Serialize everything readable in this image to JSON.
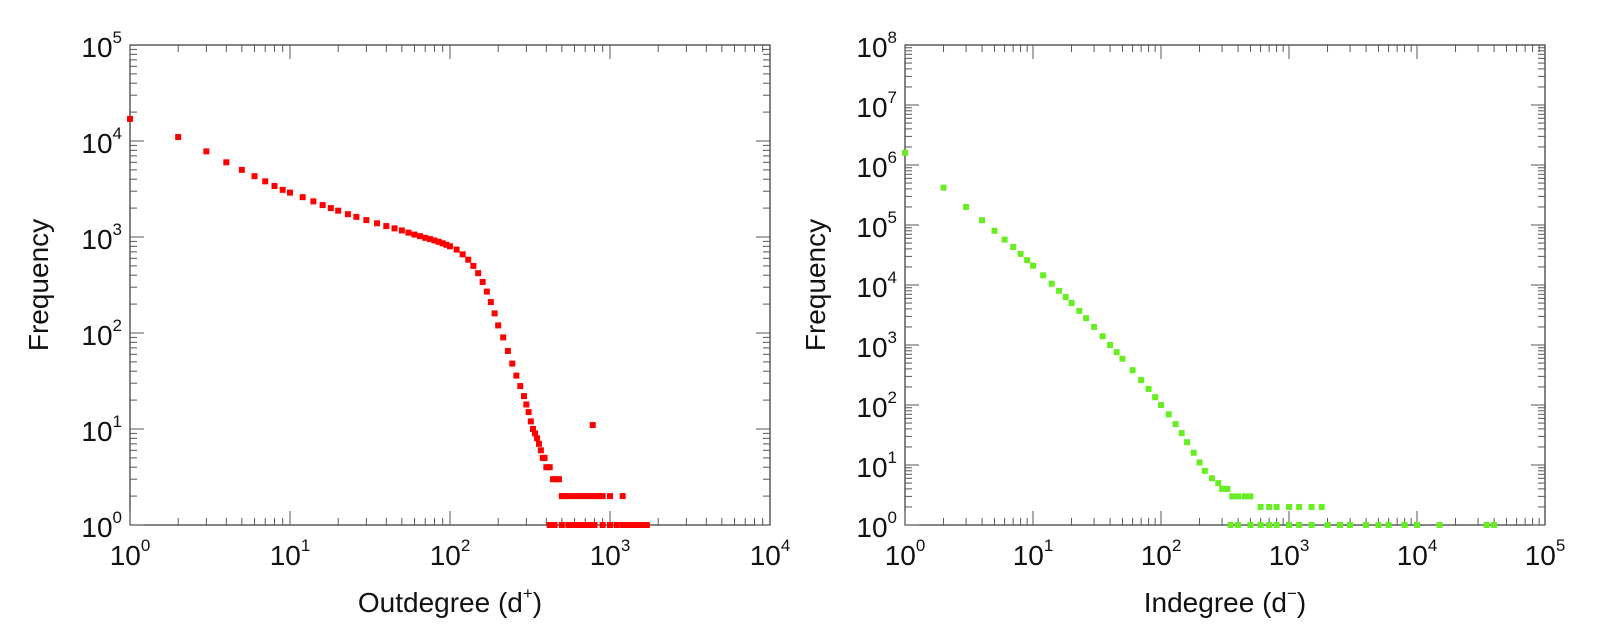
{
  "chart_data": [
    {
      "type": "scatter",
      "xlabel": "Outdegree (d",
      "xlabel_sup": "+",
      "xlabel_end": ")",
      "ylabel": "Frequency",
      "xscale": "log",
      "yscale": "log",
      "xlim": [
        1,
        10000
      ],
      "ylim": [
        1,
        100000
      ],
      "x_ticks": [
        "10",
        "10",
        "10",
        "10",
        "10"
      ],
      "x_ticks_exp": [
        "0",
        "1",
        "2",
        "3",
        "4"
      ],
      "y_ticks": [
        "10",
        "10",
        "10",
        "10",
        "10",
        "10"
      ],
      "y_ticks_exp": [
        "0",
        "1",
        "2",
        "3",
        "4",
        "5"
      ],
      "color": "#ff0000",
      "grid": false,
      "series": [
        {
          "values": [
            [
              1,
              17000
            ],
            [
              2,
              11000
            ],
            [
              3,
              7800
            ],
            [
              4,
              6000
            ],
            [
              5,
              5000
            ],
            [
              6,
              4300
            ],
            [
              7,
              3800
            ],
            [
              8,
              3400
            ],
            [
              9,
              3100
            ],
            [
              10,
              2900
            ],
            [
              12,
              2600
            ],
            [
              14,
              2350
            ],
            [
              16,
              2150
            ],
            [
              18,
              2000
            ],
            [
              20,
              1880
            ],
            [
              23,
              1730
            ],
            [
              26,
              1620
            ],
            [
              30,
              1500
            ],
            [
              35,
              1390
            ],
            [
              40,
              1300
            ],
            [
              45,
              1230
            ],
            [
              50,
              1170
            ],
            [
              55,
              1110
            ],
            [
              60,
              1060
            ],
            [
              65,
              1020
            ],
            [
              70,
              980
            ],
            [
              75,
              950
            ],
            [
              80,
              920
            ],
            [
              85,
              890
            ],
            [
              90,
              860
            ],
            [
              95,
              830
            ],
            [
              100,
              800
            ],
            [
              110,
              740
            ],
            [
              120,
              660
            ],
            [
              130,
              580
            ],
            [
              140,
              500
            ],
            [
              150,
              420
            ],
            [
              160,
              340
            ],
            [
              170,
              270
            ],
            [
              180,
              210
            ],
            [
              190,
              160
            ],
            [
              200,
              120
            ],
            [
              215,
              90
            ],
            [
              230,
              65
            ],
            [
              245,
              48
            ],
            [
              260,
              36
            ],
            [
              275,
              28
            ],
            [
              290,
              22
            ],
            [
              300,
              18
            ],
            [
              310,
              15
            ],
            [
              320,
              12
            ],
            [
              330,
              10
            ],
            [
              340,
              9
            ],
            [
              350,
              8
            ],
            [
              360,
              7
            ],
            [
              370,
              6
            ],
            [
              380,
              5
            ],
            [
              390,
              5
            ],
            [
              400,
              4
            ],
            [
              420,
              4
            ],
            [
              440,
              3
            ],
            [
              460,
              3
            ],
            [
              480,
              3
            ],
            [
              500,
              2
            ],
            [
              520,
              2
            ],
            [
              550,
              2
            ],
            [
              600,
              2
            ],
            [
              650,
              2
            ],
            [
              700,
              2
            ],
            [
              750,
              2
            ],
            [
              780,
              11
            ],
            [
              800,
              2
            ],
            [
              850,
              2
            ],
            [
              900,
              2
            ],
            [
              1000,
              2
            ],
            [
              1200,
              2
            ],
            [
              420,
              1
            ],
            [
              450,
              1
            ],
            [
              500,
              1
            ],
            [
              550,
              1
            ],
            [
              600,
              1
            ],
            [
              650,
              1
            ],
            [
              700,
              1
            ],
            [
              750,
              1
            ],
            [
              800,
              1
            ],
            [
              900,
              1
            ],
            [
              1000,
              1
            ],
            [
              1100,
              1
            ],
            [
              1200,
              1
            ],
            [
              1300,
              1
            ],
            [
              1400,
              1
            ],
            [
              1500,
              1
            ],
            [
              1600,
              1
            ],
            [
              1700,
              1
            ]
          ]
        }
      ]
    },
    {
      "type": "scatter",
      "xlabel": "Indegree (d",
      "xlabel_sup": "−",
      "xlabel_end": ")",
      "ylabel": "Frequency",
      "xscale": "log",
      "yscale": "log",
      "xlim": [
        1,
        100000
      ],
      "ylim": [
        1,
        100000000
      ],
      "x_ticks": [
        "10",
        "10",
        "10",
        "10",
        "10",
        "10"
      ],
      "x_ticks_exp": [
        "0",
        "1",
        "2",
        "3",
        "4",
        "5"
      ],
      "y_ticks": [
        "10",
        "10",
        "10",
        "10",
        "10",
        "10",
        "10",
        "10",
        "10"
      ],
      "y_ticks_exp": [
        "0",
        "1",
        "2",
        "3",
        "4",
        "5",
        "6",
        "7",
        "8"
      ],
      "color": "#66ee22",
      "grid": false,
      "series": [
        {
          "values": [
            [
              1,
              1600000
            ],
            [
              2,
              420000
            ],
            [
              3,
              200000
            ],
            [
              4,
              120000
            ],
            [
              5,
              80000
            ],
            [
              6,
              57000
            ],
            [
              7,
              43000
            ],
            [
              8,
              33000
            ],
            [
              9,
              26000
            ],
            [
              10,
              21000
            ],
            [
              12,
              14500
            ],
            [
              14,
              10500
            ],
            [
              16,
              8000
            ],
            [
              18,
              6300
            ],
            [
              20,
              5000
            ],
            [
              23,
              3700
            ],
            [
              26,
              2800
            ],
            [
              30,
              2000
            ],
            [
              35,
              1400
            ],
            [
              40,
              1000
            ],
            [
              45,
              760
            ],
            [
              50,
              590
            ],
            [
              60,
              380
            ],
            [
              70,
              260
            ],
            [
              80,
              185
            ],
            [
              90,
              135
            ],
            [
              100,
              100
            ],
            [
              115,
              70
            ],
            [
              130,
              48
            ],
            [
              145,
              34
            ],
            [
              160,
              24
            ],
            [
              180,
              16
            ],
            [
              200,
              11
            ],
            [
              220,
              8
            ],
            [
              250,
              6
            ],
            [
              280,
              5
            ],
            [
              300,
              4
            ],
            [
              330,
              4
            ],
            [
              360,
              3
            ],
            [
              400,
              3
            ],
            [
              450,
              3
            ],
            [
              500,
              3
            ],
            [
              600,
              2
            ],
            [
              700,
              2
            ],
            [
              800,
              2
            ],
            [
              1000,
              2
            ],
            [
              1200,
              2
            ],
            [
              1500,
              2
            ],
            [
              1800,
              2
            ],
            [
              350,
              1
            ],
            [
              400,
              1
            ],
            [
              500,
              1
            ],
            [
              600,
              1
            ],
            [
              700,
              1
            ],
            [
              800,
              1
            ],
            [
              1000,
              1
            ],
            [
              1200,
              1
            ],
            [
              1500,
              1
            ],
            [
              2000,
              1
            ],
            [
              2500,
              1
            ],
            [
              3000,
              1
            ],
            [
              4000,
              1
            ],
            [
              5000,
              1
            ],
            [
              6000,
              1
            ],
            [
              8000,
              1
            ],
            [
              10000,
              1
            ],
            [
              15000,
              1
            ],
            [
              35000,
              1
            ],
            [
              40000,
              1
            ]
          ]
        }
      ]
    }
  ]
}
